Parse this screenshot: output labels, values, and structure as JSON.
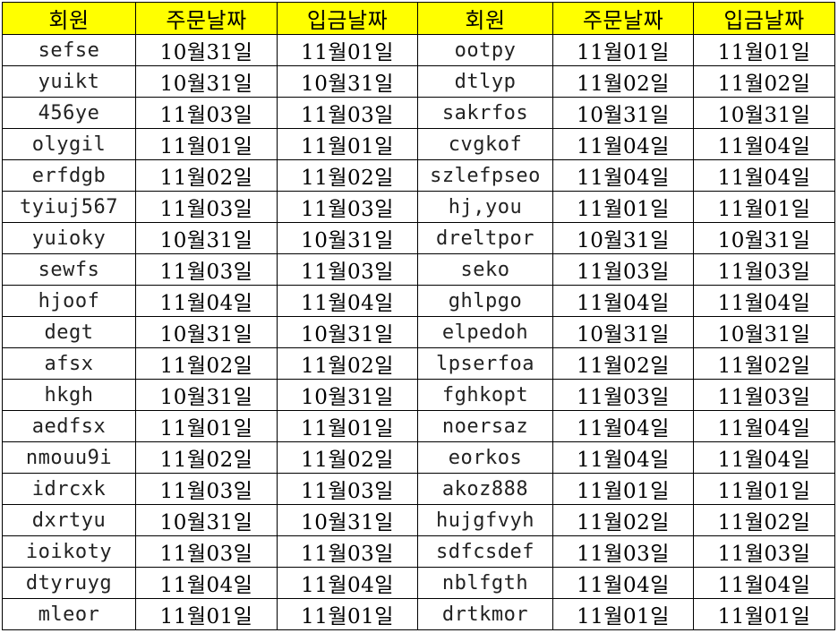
{
  "header_color": "#ffff00",
  "headers": [
    "회원",
    "주문날짜",
    "입금날짜",
    "회원",
    "주문날짜",
    "입금날짜"
  ],
  "rows": [
    [
      "sefse",
      "10월31일",
      "11월01일",
      "ootpy",
      "11월01일",
      "11월01일"
    ],
    [
      "yuikt",
      "10월31일",
      "10월31일",
      "dtlyp",
      "11월02일",
      "11월02일"
    ],
    [
      "456ye",
      "11월03일",
      "11월03일",
      "sakrfos",
      "10월31일",
      "10월31일"
    ],
    [
      "olygil",
      "11월01일",
      "11월01일",
      "cvgkof",
      "11월04일",
      "11월04일"
    ],
    [
      "erfdgb",
      "11월02일",
      "11월02일",
      "szlefpseo",
      "11월04일",
      "11월04일"
    ],
    [
      "tyiuj567",
      "11월03일",
      "11월03일",
      "hj,you",
      "11월01일",
      "11월01일"
    ],
    [
      "yuioky",
      "10월31일",
      "10월31일",
      "dreltpor",
      "10월31일",
      "10월31일"
    ],
    [
      "sewfs",
      "11월03일",
      "11월03일",
      "seko",
      "11월03일",
      "11월03일"
    ],
    [
      "hjoof",
      "11월04일",
      "11월04일",
      "ghlpgo",
      "11월04일",
      "11월04일"
    ],
    [
      "degt",
      "10월31일",
      "10월31일",
      "elpedoh",
      "10월31일",
      "10월31일"
    ],
    [
      "afsx",
      "11월02일",
      "11월02일",
      "lpserfoa",
      "11월02일",
      "11월02일"
    ],
    [
      "hkgh",
      "10월31일",
      "10월31일",
      "fghkopt",
      "11월03일",
      "11월03일"
    ],
    [
      "aedfsx",
      "11월01일",
      "11월01일",
      "noersaz",
      "11월04일",
      "11월04일"
    ],
    [
      "nmouu9i",
      "11월02일",
      "11월02일",
      "eorkos",
      "11월04일",
      "11월04일"
    ],
    [
      "idrcxk",
      "11월03일",
      "11월03일",
      "akoz888",
      "11월01일",
      "11월01일"
    ],
    [
      "dxrtyu",
      "10월31일",
      "10월31일",
      "hujgfvyh",
      "11월02일",
      "11월02일"
    ],
    [
      "ioikoty",
      "11월03일",
      "11월03일",
      "sdfcsdef",
      "11월03일",
      "11월03일"
    ],
    [
      "dtyruyg",
      "11월04일",
      "11월04일",
      "nblfgth",
      "11월04일",
      "11월04일"
    ],
    [
      "mleor",
      "11월01일",
      "11월01일",
      "drtkmor",
      "11월01일",
      "11월01일"
    ]
  ]
}
